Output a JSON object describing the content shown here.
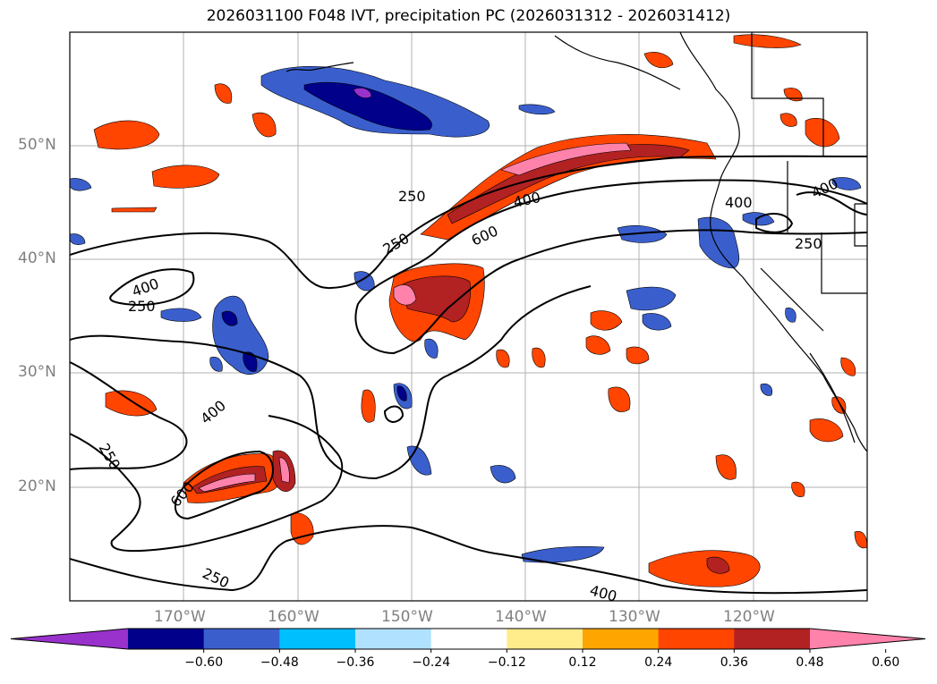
{
  "title": "2026031100 F048 IVT, precipitation PC (2026031312 - 2026031412)",
  "map": {
    "lat_labels": [
      "50°N",
      "40°N",
      "30°N",
      "20°N"
    ],
    "lon_labels": [
      "170°W",
      "160°W",
      "150°W",
      "140°W",
      "130°W",
      "120°W"
    ],
    "contour_labels": [
      "400",
      "600",
      "250",
      "400",
      "250",
      "400",
      "250",
      "400",
      "250",
      "600",
      "250",
      "400",
      "250",
      "400"
    ]
  },
  "colorbar": {
    "ticks": [
      "−0.60",
      "−0.48",
      "−0.36",
      "−0.24",
      "−0.12",
      "0.12",
      "0.24",
      "0.36",
      "0.48",
      "0.60"
    ],
    "colors": [
      "#9932CC",
      "#00008B",
      "#3A5FCD",
      "#00BFFF",
      "#B0E2FF",
      "#FFFFFF",
      "#FFEC8B",
      "#FFA500",
      "#FF4500",
      "#B22222",
      "#FF82AB"
    ]
  },
  "colors": {
    "contour": "#000000",
    "grid": "#b0b0b0",
    "coastline": "#000000"
  }
}
